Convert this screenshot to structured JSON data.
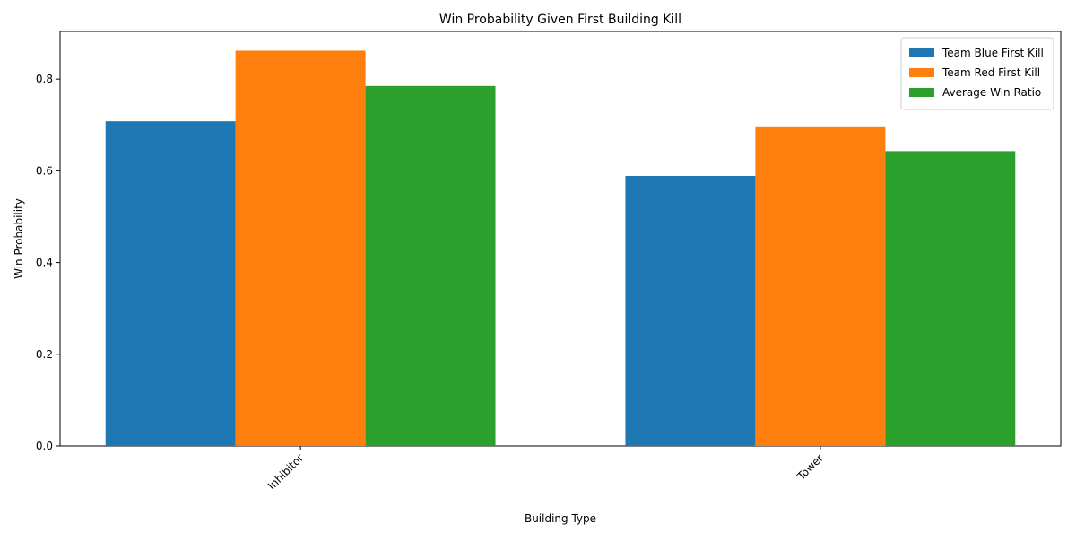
{
  "chart_data": {
    "type": "bar",
    "title": "Win Probability Given First Building Kill",
    "xlabel": "Building Type",
    "ylabel": "Win Probability",
    "categories": [
      "Inhibitor",
      "Tower"
    ],
    "series": [
      {
        "name": "Team Blue First Kill",
        "color": "#1f77b4",
        "values": [
          0.708,
          0.589
        ]
      },
      {
        "name": "Team Red First Kill",
        "color": "#ff7f0e",
        "values": [
          0.862,
          0.697
        ]
      },
      {
        "name": "Average Win Ratio",
        "color": "#2ca02c",
        "values": [
          0.785,
          0.643
        ]
      }
    ],
    "ylim": [
      0,
      0.904
    ],
    "yticks": [
      0.0,
      0.2,
      0.4,
      0.6,
      0.8
    ],
    "ytick_labels": [
      "0.0",
      "0.2",
      "0.4",
      "0.6",
      "0.8"
    ],
    "grid": false,
    "legend_position": "top-right",
    "xtick_rotation": 45
  }
}
